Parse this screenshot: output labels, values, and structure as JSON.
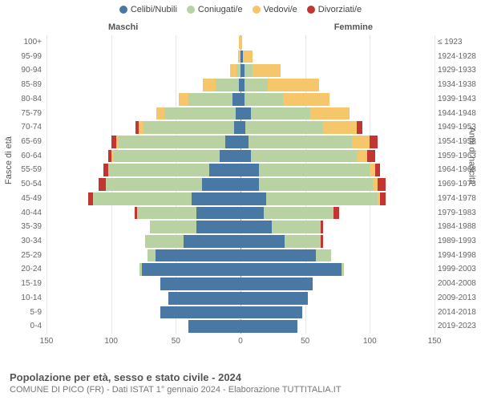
{
  "type": "population-pyramid",
  "legend": [
    {
      "label": "Celibi/Nubili",
      "color": "#4a78a4"
    },
    {
      "label": "Coniugati/e",
      "color": "#b8d2a2"
    },
    {
      "label": "Vedovi/e",
      "color": "#f6c66a"
    },
    {
      "label": "Divorziati/e",
      "color": "#c23530"
    }
  ],
  "side_labels": {
    "left": "Maschi",
    "right": "Femmine"
  },
  "y_axis_left_title": "Fasce di età",
  "y_axis_right_title": "Anni di nascita",
  "x_ticks": [
    150,
    100,
    50,
    0,
    50,
    100,
    150
  ],
  "x_max": 150,
  "footer_title": "Popolazione per età, sesso e stato civile - 2024",
  "footer_sub": "COMUNE DI PICO (FR) - Dati ISTAT 1° gennaio 2024 - Elaborazione TUTTITALIA.IT",
  "rows": [
    {
      "age": "100+",
      "birth": "≤ 1923",
      "m": [
        0,
        0,
        1,
        0
      ],
      "f": [
        0,
        0,
        1,
        0
      ]
    },
    {
      "age": "95-99",
      "birth": "1924-1928",
      "m": [
        0,
        0,
        2,
        0
      ],
      "f": [
        2,
        0,
        7,
        0
      ]
    },
    {
      "age": "90-94",
      "birth": "1929-1933",
      "m": [
        0,
        3,
        5,
        0
      ],
      "f": [
        3,
        6,
        22,
        0
      ]
    },
    {
      "age": "85-89",
      "birth": "1934-1938",
      "m": [
        1,
        18,
        10,
        0
      ],
      "f": [
        3,
        18,
        40,
        0
      ]
    },
    {
      "age": "80-84",
      "birth": "1939-1943",
      "m": [
        6,
        34,
        8,
        0
      ],
      "f": [
        3,
        30,
        36,
        0
      ]
    },
    {
      "age": "75-79",
      "birth": "1944-1948",
      "m": [
        4,
        55,
        6,
        0
      ],
      "f": [
        8,
        46,
        30,
        0
      ]
    },
    {
      "age": "70-74",
      "birth": "1949-1953",
      "m": [
        5,
        70,
        4,
        2
      ],
      "f": [
        4,
        60,
        26,
        4
      ]
    },
    {
      "age": "65-69",
      "birth": "1954-1958",
      "m": [
        12,
        82,
        2,
        4
      ],
      "f": [
        6,
        80,
        14,
        6
      ]
    },
    {
      "age": "60-64",
      "birth": "1959-1963",
      "m": [
        16,
        82,
        2,
        2
      ],
      "f": [
        8,
        82,
        8,
        6
      ]
    },
    {
      "age": "55-59",
      "birth": "1964-1968",
      "m": [
        24,
        78,
        0,
        4
      ],
      "f": [
        14,
        86,
        4,
        4
      ]
    },
    {
      "age": "50-54",
      "birth": "1969-1973",
      "m": [
        30,
        74,
        0,
        6
      ],
      "f": [
        14,
        88,
        4,
        6
      ]
    },
    {
      "age": "45-49",
      "birth": "1974-1978",
      "m": [
        38,
        76,
        0,
        4
      ],
      "f": [
        20,
        86,
        2,
        4
      ]
    },
    {
      "age": "40-44",
      "birth": "1979-1983",
      "m": [
        34,
        46,
        0,
        2
      ],
      "f": [
        18,
        54,
        0,
        4
      ]
    },
    {
      "age": "35-39",
      "birth": "1984-1988",
      "m": [
        34,
        36,
        0,
        0
      ],
      "f": [
        24,
        38,
        0,
        2
      ]
    },
    {
      "age": "30-34",
      "birth": "1989-1993",
      "m": [
        44,
        30,
        0,
        0
      ],
      "f": [
        34,
        28,
        0,
        2
      ]
    },
    {
      "age": "25-29",
      "birth": "1994-1998",
      "m": [
        66,
        6,
        0,
        0
      ],
      "f": [
        58,
        12,
        0,
        0
      ]
    },
    {
      "age": "20-24",
      "birth": "1999-2003",
      "m": [
        76,
        2,
        0,
        0
      ],
      "f": [
        78,
        2,
        0,
        0
      ]
    },
    {
      "age": "15-19",
      "birth": "2004-2008",
      "m": [
        62,
        0,
        0,
        0
      ],
      "f": [
        56,
        0,
        0,
        0
      ]
    },
    {
      "age": "10-14",
      "birth": "2009-2013",
      "m": [
        56,
        0,
        0,
        0
      ],
      "f": [
        52,
        0,
        0,
        0
      ]
    },
    {
      "age": "5-9",
      "birth": "2014-2018",
      "m": [
        62,
        0,
        0,
        0
      ],
      "f": [
        48,
        0,
        0,
        0
      ]
    },
    {
      "age": "0-4",
      "birth": "2019-2023",
      "m": [
        40,
        0,
        0,
        0
      ],
      "f": [
        44,
        0,
        0,
        0
      ]
    }
  ]
}
